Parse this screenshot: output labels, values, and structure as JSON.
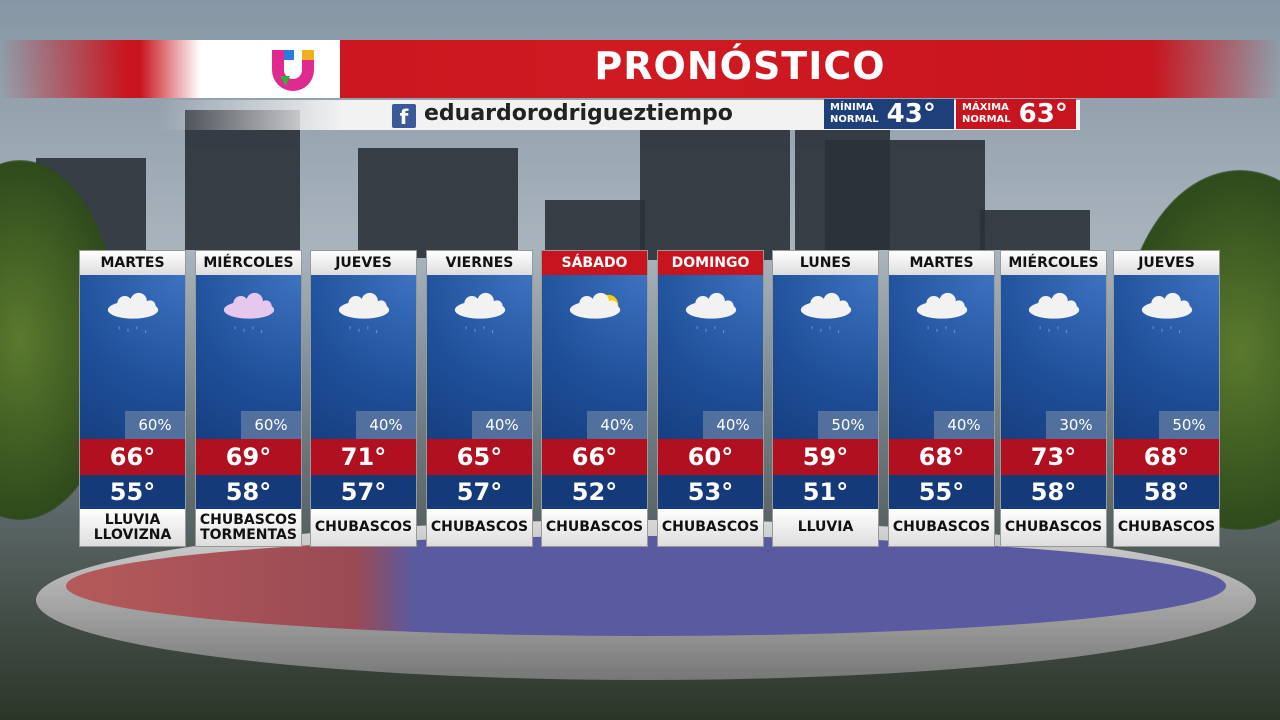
{
  "header": {
    "title": "PRONÓSTICO",
    "social_handle": "eduardorodrigueztiempo",
    "social_icon": "facebook-icon",
    "normal_min": {
      "label_1": "MÍNIMA",
      "label_2": "NORMAL",
      "value": "43°",
      "color": "#1f3f7a"
    },
    "normal_max": {
      "label_1": "MÁXIMA",
      "label_2": "NORMAL",
      "value": "63°",
      "color": "#c8141e"
    }
  },
  "days": [
    {
      "day": "MARTES",
      "weekend": false,
      "icon": "rain-cloud-icon",
      "precip": "60%",
      "high": "66°",
      "low": "55°",
      "cond1": "LLUVIA",
      "cond2": "LLOVIZNA"
    },
    {
      "day": "MIÉRCOLES",
      "weekend": false,
      "icon": "thunderstorm-cloud-icon",
      "precip": "60%",
      "high": "69°",
      "low": "58°",
      "cond1": "CHUBASCOS",
      "cond2": "TORMENTAS"
    },
    {
      "day": "JUEVES",
      "weekend": false,
      "icon": "rain-cloud-icon",
      "precip": "40%",
      "high": "71°",
      "low": "57°",
      "cond1": "CHUBASCOS",
      "cond2": ""
    },
    {
      "day": "VIERNES",
      "weekend": false,
      "icon": "cloud-icon",
      "precip": "40%",
      "high": "65°",
      "low": "57°",
      "cond1": "CHUBASCOS",
      "cond2": ""
    },
    {
      "day": "SÁBADO",
      "weekend": true,
      "icon": "sun-cloud-icon",
      "precip": "40%",
      "high": "66°",
      "low": "52°",
      "cond1": "CHUBASCOS",
      "cond2": ""
    },
    {
      "day": "DOMINGO",
      "weekend": true,
      "icon": "rain-cloud-icon",
      "precip": "40%",
      "high": "60°",
      "low": "53°",
      "cond1": "CHUBASCOS",
      "cond2": ""
    },
    {
      "day": "LUNES",
      "weekend": false,
      "icon": "rain-cloud-icon",
      "precip": "50%",
      "high": "59°",
      "low": "51°",
      "cond1": "LLUVIA",
      "cond2": ""
    },
    {
      "day": "MARTES",
      "weekend": false,
      "icon": "rain-cloud-icon",
      "precip": "40%",
      "high": "68°",
      "low": "55°",
      "cond1": "CHUBASCOS",
      "cond2": ""
    },
    {
      "day": "MIÉRCOLES",
      "weekend": false,
      "icon": "rain-cloud-icon",
      "precip": "30%",
      "high": "73°",
      "low": "58°",
      "cond1": "CHUBASCOS",
      "cond2": ""
    },
    {
      "day": "JUEVES",
      "weekend": false,
      "icon": "rain-cloud-icon",
      "precip": "50%",
      "high": "68°",
      "low": "58°",
      "cond1": "CHUBASCOS",
      "cond2": ""
    }
  ]
}
